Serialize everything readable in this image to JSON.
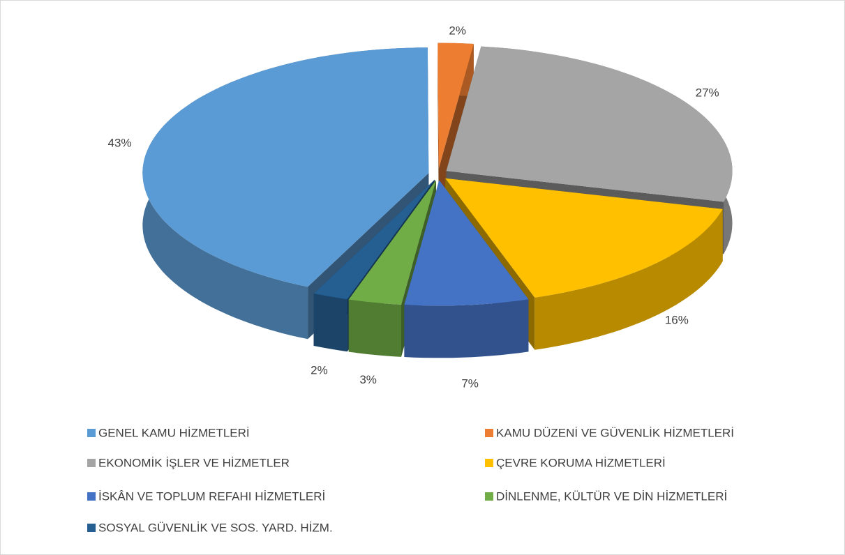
{
  "chart_data": {
    "type": "pie3d",
    "categories": [
      "GENEL KAMU HİZMETLERİ",
      "KAMU DÜZENİ VE GÜVENLİK HİZMETLERİ",
      "EKONOMİK İŞLER VE HİZMETLER",
      "ÇEVRE KORUMA HİZMETLERİ",
      "İSKÂN VE TOPLUM REFAHI HİZMETLERİ",
      "DİNLENME, KÜLTÜR VE DİN HİZMETLERİ",
      "SOSYAL GÜVENLİK VE SOS. YARD. HİZM."
    ],
    "values": [
      43,
      2,
      27,
      16,
      7,
      3,
      2
    ],
    "value_labels": [
      "43%",
      "2%",
      "27%",
      "16%",
      "7%",
      "3%",
      "2%"
    ],
    "colors": [
      "#5b9bd5",
      "#ed7d31",
      "#a5a5a5",
      "#ffc000",
      "#4472c4",
      "#70ad47",
      "#255e91"
    ],
    "legend": "bottom"
  }
}
